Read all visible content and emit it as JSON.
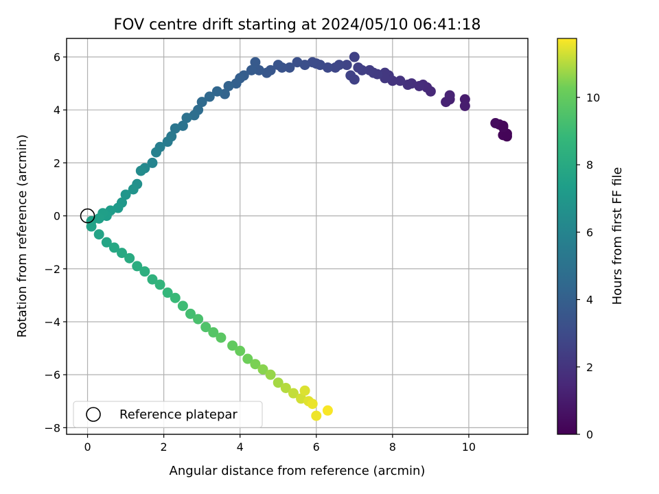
{
  "chart_data": {
    "type": "scatter",
    "title": "FOV centre drift starting at 2024/05/10 06:41:18",
    "xlabel": "Angular distance from reference (arcmin)",
    "ylabel": "Rotation from reference (arcmin)",
    "xlim": [
      -0.55,
      11.55
    ],
    "ylim": [
      -8.25,
      6.7
    ],
    "xticks": [
      0,
      2,
      4,
      6,
      8,
      10
    ],
    "yticks": [
      -8,
      -6,
      -4,
      -2,
      0,
      2,
      4,
      6
    ],
    "grid": true,
    "legend": {
      "location": "lower-left",
      "entries": [
        "Reference platepar"
      ]
    },
    "reference_point": {
      "x": 0,
      "y": 0,
      "label": "Reference platepar"
    },
    "colorbar": {
      "label": "Hours from first FF file",
      "min": 0,
      "max": 11.75,
      "ticks": [
        0,
        2,
        4,
        6,
        8,
        10
      ],
      "colormap": "viridis"
    },
    "series": [
      {
        "x": [
          11.0,
          10.9,
          10.9,
          10.8,
          10.7,
          11.0,
          10.9,
          9.9,
          9.9,
          9.5,
          9.4,
          9.5,
          9.0,
          8.9,
          8.8,
          8.7,
          8.5,
          8.4,
          8.2,
          8.0,
          7.9,
          7.8,
          7.8,
          7.6,
          7.5,
          7.4,
          7.2,
          7.1,
          7.0,
          6.9,
          7.0,
          6.8,
          6.6,
          6.5,
          6.3,
          6.1,
          6.0,
          5.9,
          5.7,
          5.5,
          5.3,
          5.1,
          5.0,
          4.8,
          4.7,
          4.5,
          4.4,
          4.3,
          4.1,
          4.0,
          3.9,
          3.7,
          3.6,
          3.4,
          3.2,
          3.0,
          2.9,
          2.8,
          2.6,
          2.5,
          2.3,
          2.2,
          2.1,
          1.9,
          1.8,
          1.7,
          1.5,
          1.4,
          1.3,
          1.2,
          1.0,
          0.9,
          0.8,
          0.6,
          0.5,
          0.4,
          0.3,
          0.1,
          0.1,
          0.3,
          0.5,
          0.7,
          0.9,
          1.1,
          1.3,
          1.5,
          1.7,
          1.9,
          2.1,
          2.3,
          2.5,
          2.7,
          2.9,
          3.1,
          3.3,
          3.5,
          3.8,
          4.0,
          4.2,
          4.4,
          4.6,
          4.8,
          5.0,
          5.2,
          5.4,
          5.6,
          5.8,
          5.9,
          6.0,
          6.3,
          5.7
        ],
        "y": [
          3.0,
          3.05,
          3.4,
          3.45,
          3.5,
          3.1,
          3.35,
          4.4,
          4.15,
          4.4,
          4.3,
          4.55,
          4.7,
          4.85,
          4.95,
          4.9,
          5.0,
          4.95,
          5.1,
          5.1,
          5.3,
          5.4,
          5.2,
          5.35,
          5.4,
          5.5,
          5.5,
          5.6,
          6.0,
          5.3,
          5.15,
          5.7,
          5.7,
          5.6,
          5.6,
          5.7,
          5.75,
          5.8,
          5.7,
          5.8,
          5.6,
          5.6,
          5.7,
          5.5,
          5.4,
          5.5,
          5.8,
          5.5,
          5.3,
          5.2,
          5.0,
          4.9,
          4.6,
          4.7,
          4.5,
          4.3,
          4.0,
          3.8,
          3.7,
          3.4,
          3.3,
          3.0,
          2.8,
          2.6,
          2.4,
          2.0,
          1.8,
          1.7,
          1.2,
          1.0,
          0.8,
          0.5,
          0.3,
          0.2,
          0.0,
          0.1,
          -0.1,
          -0.2,
          -0.4,
          -0.7,
          -1.0,
          -1.2,
          -1.4,
          -1.6,
          -1.9,
          -2.1,
          -2.4,
          -2.6,
          -2.9,
          -3.1,
          -3.4,
          -3.7,
          -3.9,
          -4.2,
          -4.4,
          -4.6,
          -4.9,
          -5.1,
          -5.4,
          -5.6,
          -5.8,
          -6.0,
          -6.3,
          -6.5,
          -6.7,
          -6.9,
          -7.0,
          -7.1,
          -7.55,
          -7.35,
          -6.6
        ],
        "c": [
          0.1,
          0.2,
          0.3,
          0.35,
          0.4,
          0.15,
          0.25,
          1.0,
          1.05,
          1.2,
          1.25,
          1.3,
          1.5,
          1.55,
          1.6,
          1.7,
          1.8,
          1.85,
          1.95,
          2.0,
          2.1,
          2.2,
          2.2,
          2.3,
          2.35,
          2.4,
          2.5,
          2.55,
          2.6,
          2.65,
          2.6,
          2.7,
          2.8,
          2.85,
          2.95,
          3.0,
          3.05,
          3.1,
          3.2,
          3.25,
          3.35,
          3.4,
          3.45,
          3.55,
          3.6,
          3.7,
          3.75,
          3.8,
          3.9,
          4.0,
          4.05,
          4.15,
          4.2,
          4.35,
          4.45,
          4.6,
          4.7,
          4.8,
          4.95,
          5.05,
          5.2,
          5.35,
          5.5,
          5.65,
          5.8,
          6.0,
          6.2,
          6.35,
          6.6,
          6.75,
          6.9,
          7.05,
          7.15,
          7.25,
          7.35,
          7.4,
          7.45,
          7.5,
          7.55,
          7.65,
          7.75,
          7.85,
          7.95,
          8.05,
          8.15,
          8.3,
          8.45,
          8.6,
          8.75,
          8.9,
          9.05,
          9.2,
          9.35,
          9.5,
          9.65,
          9.8,
          9.95,
          10.1,
          10.25,
          10.4,
          10.55,
          10.7,
          10.85,
          11.0,
          11.15,
          11.3,
          11.45,
          11.55,
          11.6,
          11.7,
          11.4
        ]
      }
    ]
  }
}
